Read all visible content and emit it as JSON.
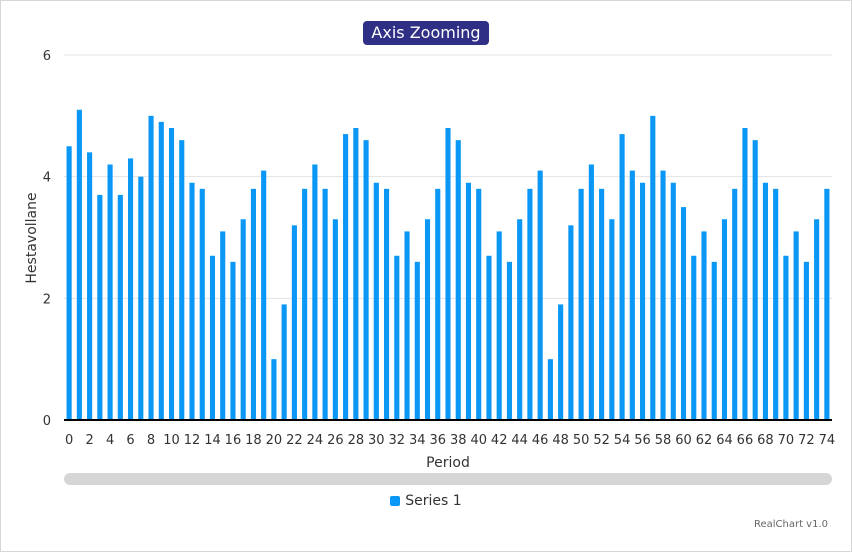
{
  "colors": {
    "series": "#0a97f5",
    "title_bg": "#2f2f86",
    "grid": "#e3e3e3",
    "axis": "#000000",
    "navigator": "#d6d6d6"
  },
  "credit": "RealChart v1.0",
  "chart_data": {
    "type": "bar",
    "title": "Axis Zooming",
    "xlabel": "Period",
    "ylabel": "Hestavollane",
    "ylim": [
      0,
      6
    ],
    "yticks": [
      0,
      2,
      4,
      6
    ],
    "xticks": [
      0,
      2,
      4,
      6,
      8,
      10,
      12,
      14,
      16,
      18,
      20,
      22,
      24,
      26,
      28,
      30,
      32,
      34,
      36,
      38,
      40,
      42,
      44,
      46,
      48,
      50,
      52,
      54,
      56,
      58,
      60,
      62,
      64,
      66,
      68,
      70,
      72,
      74
    ],
    "grid": true,
    "legend_position": "bottom",
    "series": [
      {
        "name": "Series 1",
        "x": [
          0,
          1,
          2,
          3,
          4,
          5,
          6,
          7,
          8,
          9,
          10,
          11,
          12,
          13,
          14,
          15,
          16,
          17,
          18,
          19,
          20,
          21,
          22,
          23,
          24,
          25,
          26,
          27,
          28,
          29,
          30,
          31,
          32,
          33,
          34,
          35,
          36,
          37,
          38,
          39,
          40,
          41,
          42,
          43,
          44,
          45,
          46,
          47,
          48,
          49,
          50,
          51,
          52,
          53,
          54,
          55,
          56,
          57,
          58,
          59,
          60,
          61,
          62,
          63,
          64,
          65,
          66,
          67,
          68,
          69,
          70,
          71,
          72,
          73,
          74
        ],
        "values": [
          4.5,
          5.1,
          4.4,
          3.7,
          4.2,
          3.7,
          4.3,
          4.0,
          5.0,
          4.9,
          4.8,
          4.6,
          3.9,
          3.8,
          2.7,
          3.1,
          2.6,
          3.3,
          3.8,
          4.1,
          1.0,
          1.9,
          3.2,
          3.8,
          4.2,
          3.8,
          3.3,
          4.7,
          4.8,
          4.6,
          3.9,
          3.8,
          2.7,
          3.1,
          2.6,
          3.3,
          3.8,
          4.8,
          4.6,
          3.9,
          3.8,
          2.7,
          3.1,
          2.6,
          3.3,
          3.8,
          4.1,
          1.0,
          1.9,
          3.2,
          3.8,
          4.2,
          3.8,
          3.3,
          4.7,
          4.1,
          3.9,
          5.0,
          4.1,
          3.9,
          3.5,
          2.7,
          3.1,
          2.6,
          3.3,
          3.8,
          4.8,
          4.6,
          3.9,
          3.8,
          2.7,
          3.1,
          2.6,
          3.3,
          3.8
        ]
      }
    ]
  }
}
